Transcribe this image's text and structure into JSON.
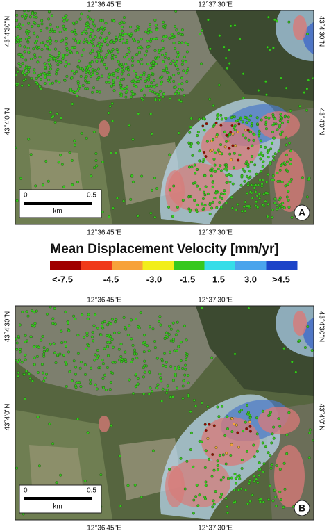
{
  "panels": [
    {
      "letter": "A",
      "top_labels": [
        "12°36'45\"E",
        "12°37'30\"E"
      ],
      "bottom_labels": [
        "12°36'45\"E",
        "12°37'30\"E"
      ],
      "left_labels": [
        "43°4'30\"N",
        "43°4'0\"N"
      ],
      "right_labels": [
        "43°4'30\"N",
        "43°4'0\"N"
      ],
      "scale_bar": {
        "start": "0",
        "end": "0.5",
        "unit": "km"
      }
    },
    {
      "letter": "B",
      "top_labels": [
        "12°36'45\"E",
        "12°37'30\"E"
      ],
      "bottom_labels": [
        "12°36'45\"E",
        "12°37'30\"E"
      ],
      "left_labels": [
        "43°4'30\"N",
        "43°4'0\"N"
      ],
      "right_labels": [
        "43°4'30\"N",
        "43°4'0\"N"
      ],
      "scale_bar": {
        "start": "0",
        "end": "0.5",
        "unit": "km"
      }
    }
  ],
  "legend": {
    "title": "Mean Displacement Velocity [mm/yr]",
    "colors": [
      "#a00000",
      "#f03a1a",
      "#f7a23a",
      "#f2ee1a",
      "#36c81e",
      "#35dde8",
      "#4aa4ec",
      "#1c44c8"
    ],
    "labels": [
      "<-7.5",
      "-4.5",
      "-3.0",
      "-1.5",
      "1.5",
      "3.0",
      ">4.5"
    ]
  }
}
